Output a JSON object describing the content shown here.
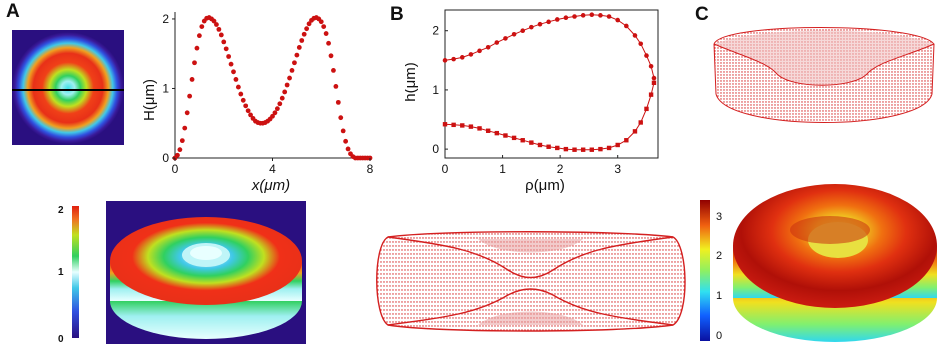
{
  "panels": {
    "a": {
      "letter": "A"
    },
    "b": {
      "letter": "B"
    },
    "c": {
      "letter": "C"
    }
  },
  "colorbar_a": {
    "ticks": [
      "2",
      "1",
      "0"
    ]
  },
  "colorbar_c": {
    "ticks": [
      "3",
      "2",
      "1",
      "0"
    ]
  },
  "chart_data": [
    {
      "type": "scatter",
      "panel": "A",
      "xlabel": "x(μm)",
      "ylabel": "H(μm)",
      "xlim": [
        0,
        8
      ],
      "ylim": [
        0,
        2.1
      ],
      "xticks": [
        "0",
        "4",
        "8"
      ],
      "yticks": [
        "0",
        "1",
        "2"
      ],
      "series": [
        {
          "color": "#cc1111",
          "x": [
            0.0,
            0.1,
            0.2,
            0.3,
            0.4,
            0.5,
            0.6,
            0.7,
            0.8,
            0.9,
            1.0,
            1.1,
            1.2,
            1.3,
            1.4,
            1.5,
            1.6,
            1.7,
            1.8,
            1.9,
            2.0,
            2.1,
            2.2,
            2.3,
            2.4,
            2.5,
            2.6,
            2.7,
            2.8,
            2.9,
            3.0,
            3.1,
            3.2,
            3.3,
            3.4,
            3.5,
            3.6,
            3.7,
            3.8,
            3.9,
            4.0,
            4.1,
            4.2,
            4.3,
            4.4,
            4.5,
            4.6,
            4.7,
            4.8,
            4.9,
            5.0,
            5.1,
            5.2,
            5.3,
            5.4,
            5.5,
            5.6,
            5.7,
            5.8,
            5.9,
            6.0,
            6.1,
            6.2,
            6.3,
            6.4,
            6.5,
            6.6,
            6.7,
            6.8,
            6.9,
            7.0,
            7.1,
            7.2,
            7.3,
            7.4,
            7.5,
            7.6,
            7.7,
            7.8,
            7.9,
            8.0
          ],
          "y": [
            0.0,
            0.04,
            0.12,
            0.25,
            0.43,
            0.65,
            0.89,
            1.13,
            1.37,
            1.58,
            1.76,
            1.89,
            1.97,
            2.01,
            2.02,
            2.0,
            1.97,
            1.92,
            1.85,
            1.77,
            1.67,
            1.57,
            1.46,
            1.35,
            1.24,
            1.13,
            1.02,
            0.92,
            0.83,
            0.75,
            0.68,
            0.62,
            0.57,
            0.53,
            0.51,
            0.5,
            0.5,
            0.51,
            0.53,
            0.56,
            0.6,
            0.65,
            0.71,
            0.78,
            0.86,
            0.95,
            1.05,
            1.15,
            1.26,
            1.37,
            1.48,
            1.59,
            1.69,
            1.78,
            1.86,
            1.93,
            1.98,
            2.01,
            2.02,
            2.0,
            1.96,
            1.89,
            1.79,
            1.65,
            1.47,
            1.26,
            1.03,
            0.8,
            0.58,
            0.39,
            0.24,
            0.13,
            0.06,
            0.02,
            0.0,
            0.0,
            0.0,
            0.0,
            0.0,
            0.0,
            0.0
          ]
        }
      ]
    },
    {
      "type": "scatter",
      "panel": "B",
      "xlabel": "ρ(μm)",
      "ylabel": "h(μm)",
      "xlim": [
        0,
        3.7
      ],
      "ylim": [
        -0.15,
        2.35
      ],
      "xticks": [
        "0",
        "1",
        "2",
        "3"
      ],
      "yticks": [
        "0",
        "1",
        "2"
      ],
      "series": [
        {
          "marker": "circle",
          "color": "#cc1111",
          "x": [
            0.0,
            0.15,
            0.3,
            0.45,
            0.6,
            0.75,
            0.9,
            1.05,
            1.2,
            1.35,
            1.5,
            1.65,
            1.8,
            1.95,
            2.1,
            2.25,
            2.4,
            2.55,
            2.7,
            2.85,
            3.0,
            3.15,
            3.3,
            3.4,
            3.5,
            3.58,
            3.63
          ],
          "y": [
            1.5,
            1.52,
            1.55,
            1.6,
            1.66,
            1.72,
            1.8,
            1.87,
            1.94,
            2.0,
            2.06,
            2.11,
            2.15,
            2.19,
            2.22,
            2.24,
            2.26,
            2.27,
            2.26,
            2.24,
            2.18,
            2.08,
            1.92,
            1.78,
            1.58,
            1.4,
            1.2
          ]
        },
        {
          "marker": "square",
          "color": "#cc1111",
          "x": [
            0.0,
            0.15,
            0.3,
            0.45,
            0.6,
            0.75,
            0.9,
            1.05,
            1.2,
            1.35,
            1.5,
            1.65,
            1.8,
            1.95,
            2.1,
            2.25,
            2.4,
            2.55,
            2.7,
            2.85,
            3.0,
            3.15,
            3.3,
            3.4,
            3.5,
            3.58,
            3.63
          ],
          "y": [
            0.42,
            0.41,
            0.4,
            0.38,
            0.35,
            0.31,
            0.27,
            0.23,
            0.19,
            0.15,
            0.11,
            0.07,
            0.04,
            0.02,
            0.0,
            -0.01,
            -0.01,
            -0.01,
            0.0,
            0.02,
            0.07,
            0.15,
            0.3,
            0.45,
            0.68,
            0.92,
            1.12
          ]
        }
      ]
    }
  ]
}
